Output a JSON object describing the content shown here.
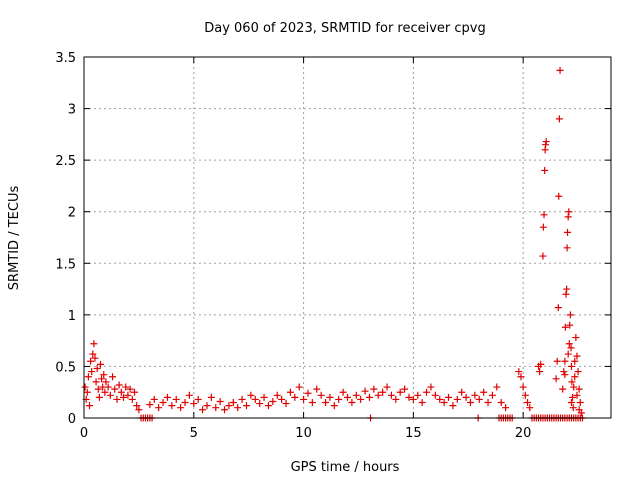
{
  "chart_data": {
    "type": "scatter",
    "title": "Day 060 of 2023, SRMTID for receiver cpvg",
    "xlabel": "GPS time / hours",
    "ylabel": "SRMTID / TECUs",
    "xlim": [
      0,
      24
    ],
    "ylim": [
      0,
      3.5
    ],
    "x_ticks": [
      0,
      5,
      10,
      15,
      20
    ],
    "x_tick_labels": [
      "0",
      "5",
      "10",
      "15",
      "20"
    ],
    "y_ticks": [
      0,
      0.5,
      1,
      1.5,
      2,
      2.5,
      3,
      3.5
    ],
    "y_tick_labels": [
      "0",
      "0.5",
      "1",
      "1.5",
      "2",
      "2.5",
      "3",
      "3.5"
    ],
    "grid": true,
    "marker": "+",
    "color": "#e00000",
    "series": [
      {
        "name": "cpvg",
        "points": [
          [
            0.05,
            0.3
          ],
          [
            0.1,
            0.18
          ],
          [
            0.15,
            0.25
          ],
          [
            0.2,
            0.4
          ],
          [
            0.25,
            0.12
          ],
          [
            0.3,
            0.55
          ],
          [
            0.35,
            0.45
          ],
          [
            0.4,
            0.62
          ],
          [
            0.45,
            0.72
          ],
          [
            0.5,
            0.58
          ],
          [
            0.55,
            0.35
          ],
          [
            0.6,
            0.48
          ],
          [
            0.65,
            0.28
          ],
          [
            0.7,
            0.2
          ],
          [
            0.75,
            0.52
          ],
          [
            0.8,
            0.38
          ],
          [
            0.85,
            0.3
          ],
          [
            0.9,
            0.42
          ],
          [
            0.95,
            0.25
          ],
          [
            1.0,
            0.35
          ],
          [
            1.1,
            0.3
          ],
          [
            1.2,
            0.22
          ],
          [
            1.3,
            0.4
          ],
          [
            1.4,
            0.28
          ],
          [
            1.5,
            0.18
          ],
          [
            1.6,
            0.32
          ],
          [
            1.7,
            0.25
          ],
          [
            1.8,
            0.2
          ],
          [
            1.9,
            0.3
          ],
          [
            2.0,
            0.22
          ],
          [
            2.1,
            0.28
          ],
          [
            2.2,
            0.18
          ],
          [
            2.3,
            0.25
          ],
          [
            2.4,
            0.12
          ],
          [
            2.5,
            0.08
          ],
          [
            3.0,
            0.13
          ],
          [
            3.2,
            0.18
          ],
          [
            3.4,
            0.1
          ],
          [
            3.6,
            0.15
          ],
          [
            3.8,
            0.2
          ],
          [
            4.0,
            0.12
          ],
          [
            4.2,
            0.18
          ],
          [
            4.4,
            0.1
          ],
          [
            4.6,
            0.15
          ],
          [
            4.8,
            0.22
          ],
          [
            5.0,
            0.14
          ],
          [
            5.2,
            0.18
          ],
          [
            5.4,
            0.08
          ],
          [
            5.6,
            0.12
          ],
          [
            5.8,
            0.2
          ],
          [
            6.0,
            0.1
          ],
          [
            6.2,
            0.16
          ],
          [
            6.4,
            0.08
          ],
          [
            6.6,
            0.12
          ],
          [
            6.8,
            0.15
          ],
          [
            7.0,
            0.1
          ],
          [
            7.2,
            0.18
          ],
          [
            7.4,
            0.12
          ],
          [
            7.6,
            0.22
          ],
          [
            7.8,
            0.18
          ],
          [
            8.0,
            0.14
          ],
          [
            8.2,
            0.2
          ],
          [
            8.4,
            0.12
          ],
          [
            8.6,
            0.16
          ],
          [
            8.8,
            0.22
          ],
          [
            9.0,
            0.18
          ],
          [
            9.2,
            0.14
          ],
          [
            9.4,
            0.25
          ],
          [
            9.6,
            0.2
          ],
          [
            9.8,
            0.3
          ],
          [
            10.0,
            0.18
          ],
          [
            10.2,
            0.24
          ],
          [
            10.4,
            0.15
          ],
          [
            10.6,
            0.28
          ],
          [
            10.8,
            0.22
          ],
          [
            11.0,
            0.15
          ],
          [
            11.2,
            0.2
          ],
          [
            11.4,
            0.12
          ],
          [
            11.6,
            0.18
          ],
          [
            11.8,
            0.25
          ],
          [
            12.0,
            0.2
          ],
          [
            12.2,
            0.15
          ],
          [
            12.4,
            0.22
          ],
          [
            12.6,
            0.18
          ],
          [
            12.8,
            0.26
          ],
          [
            13.0,
            0.2
          ],
          [
            13.2,
            0.28
          ],
          [
            13.4,
            0.22
          ],
          [
            13.6,
            0.25
          ],
          [
            13.8,
            0.3
          ],
          [
            14.0,
            0.22
          ],
          [
            14.2,
            0.18
          ],
          [
            14.4,
            0.25
          ],
          [
            14.6,
            0.28
          ],
          [
            14.8,
            0.2
          ],
          [
            15.0,
            0.18
          ],
          [
            15.2,
            0.22
          ],
          [
            15.4,
            0.15
          ],
          [
            15.6,
            0.25
          ],
          [
            15.8,
            0.3
          ],
          [
            16.0,
            0.22
          ],
          [
            16.2,
            0.18
          ],
          [
            16.4,
            0.15
          ],
          [
            16.6,
            0.2
          ],
          [
            16.8,
            0.12
          ],
          [
            17.0,
            0.18
          ],
          [
            17.2,
            0.25
          ],
          [
            17.4,
            0.2
          ],
          [
            17.6,
            0.15
          ],
          [
            17.8,
            0.22
          ],
          [
            18.0,
            0.18
          ],
          [
            18.2,
            0.25
          ],
          [
            18.4,
            0.15
          ],
          [
            18.6,
            0.22
          ],
          [
            18.8,
            0.3
          ],
          [
            19.0,
            0.15
          ],
          [
            19.2,
            0.1
          ],
          [
            19.8,
            0.45
          ],
          [
            19.9,
            0.4
          ],
          [
            20.0,
            0.3
          ],
          [
            20.1,
            0.22
          ],
          [
            20.2,
            0.15
          ],
          [
            20.3,
            0.1
          ],
          [
            20.7,
            0.5
          ],
          [
            20.75,
            0.45
          ],
          [
            20.8,
            0.52
          ],
          [
            20.9,
            1.57
          ],
          [
            20.92,
            1.85
          ],
          [
            20.95,
            1.97
          ],
          [
            20.98,
            2.4
          ],
          [
            21.0,
            2.6
          ],
          [
            21.02,
            2.65
          ],
          [
            21.05,
            2.68
          ],
          [
            21.5,
            0.38
          ],
          [
            21.55,
            0.55
          ],
          [
            21.6,
            1.07
          ],
          [
            21.62,
            2.15
          ],
          [
            21.65,
            2.9
          ],
          [
            21.68,
            3.37
          ],
          [
            21.8,
            0.28
          ],
          [
            21.85,
            0.45
          ],
          [
            21.9,
            0.55
          ],
          [
            21.92,
            0.88
          ],
          [
            21.95,
            1.2
          ],
          [
            21.98,
            1.25
          ],
          [
            22.0,
            1.65
          ],
          [
            22.02,
            1.8
          ],
          [
            22.05,
            1.95
          ],
          [
            22.08,
            2.0
          ],
          [
            22.1,
            0.72
          ],
          [
            22.12,
            0.9
          ],
          [
            22.15,
            1.0
          ],
          [
            22.18,
            0.68
          ],
          [
            22.2,
            0.5
          ],
          [
            22.22,
            0.35
          ],
          [
            22.25,
            0.2
          ],
          [
            22.28,
            0.1
          ],
          [
            22.3,
            0.3
          ],
          [
            22.35,
            0.55
          ],
          [
            22.4,
            0.78
          ],
          [
            22.45,
            0.6
          ],
          [
            22.5,
            0.45
          ],
          [
            22.55,
            0.28
          ],
          [
            22.6,
            0.15
          ],
          [
            22.65,
            0.05
          ],
          [
            22.05,
            0.62
          ],
          [
            21.9,
            0.42
          ],
          [
            22.35,
            0.4
          ],
          [
            22.45,
            0.22
          ],
          [
            22.2,
            0.15
          ],
          [
            22.55,
            0.08
          ]
        ],
        "zero_points": [
          [
            2.6,
            0
          ],
          [
            2.7,
            0
          ],
          [
            2.8,
            0
          ],
          [
            2.9,
            0
          ],
          [
            3.0,
            0
          ],
          [
            3.1,
            0
          ],
          [
            13.05,
            0
          ],
          [
            17.95,
            0
          ],
          [
            18.9,
            0
          ],
          [
            19.0,
            0
          ],
          [
            19.1,
            0
          ],
          [
            19.2,
            0
          ],
          [
            19.3,
            0
          ],
          [
            19.4,
            0
          ],
          [
            19.5,
            0
          ],
          [
            20.4,
            0
          ],
          [
            20.5,
            0
          ],
          [
            20.6,
            0
          ],
          [
            20.7,
            0
          ],
          [
            20.8,
            0
          ],
          [
            20.9,
            0
          ],
          [
            21.0,
            0
          ],
          [
            21.1,
            0
          ],
          [
            21.2,
            0
          ],
          [
            21.3,
            0
          ],
          [
            21.4,
            0
          ],
          [
            21.5,
            0
          ],
          [
            21.6,
            0
          ],
          [
            21.7,
            0
          ],
          [
            21.8,
            0
          ],
          [
            21.9,
            0
          ],
          [
            22.0,
            0
          ],
          [
            22.1,
            0
          ],
          [
            22.2,
            0
          ],
          [
            22.3,
            0
          ],
          [
            22.4,
            0
          ],
          [
            22.5,
            0
          ],
          [
            22.6,
            0
          ],
          [
            22.7,
            0
          ]
        ]
      }
    ]
  }
}
